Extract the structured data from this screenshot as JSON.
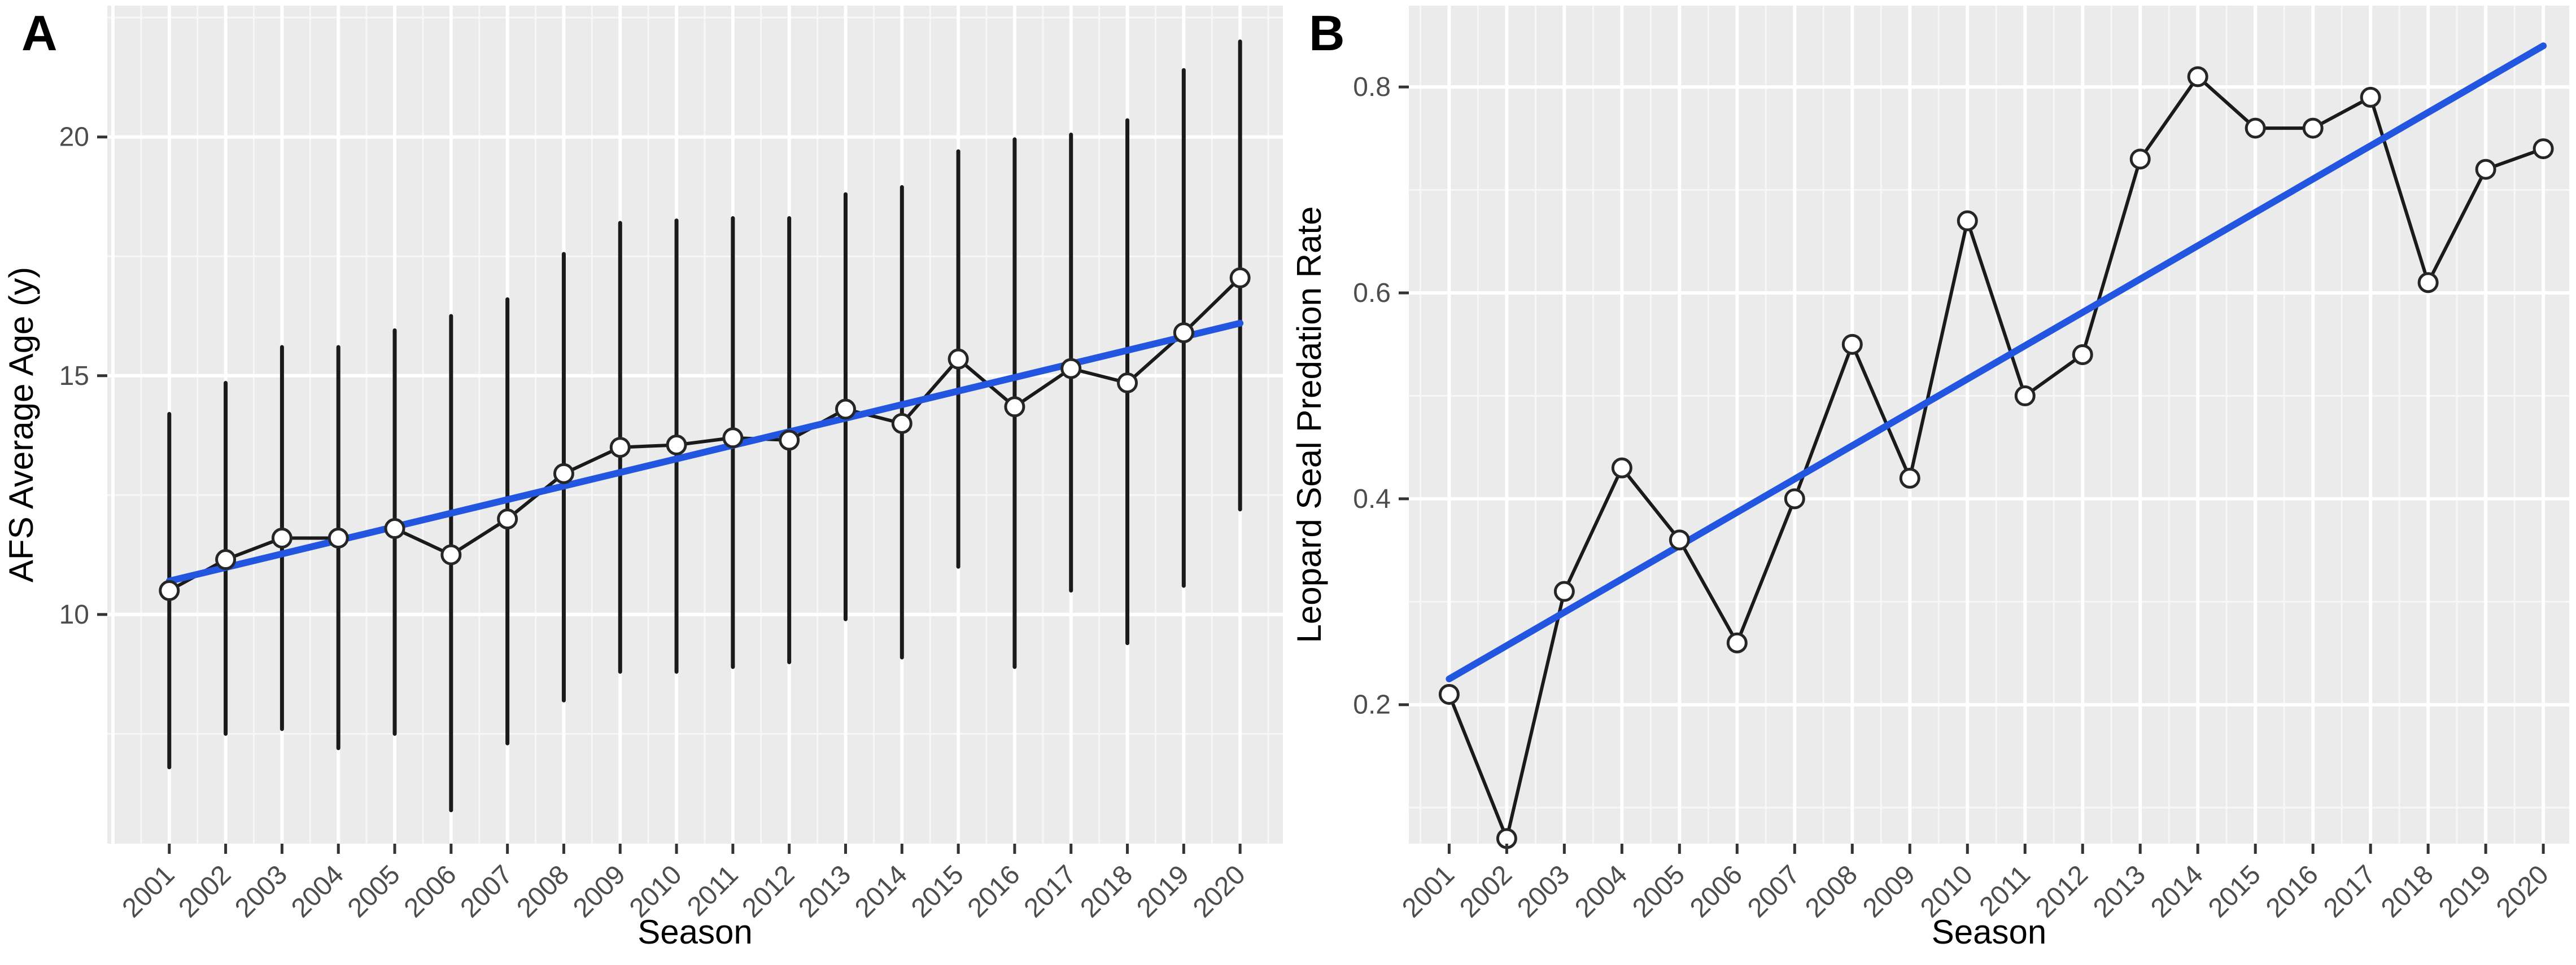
{
  "figure": {
    "description": "Two-panel scatter/line chart with linear trend lines",
    "x_axis_title": "Season"
  },
  "colors": {
    "panel_bg": "#EBEBEB",
    "grid_major": "#FFFFFF",
    "grid_minor": "#F7F7F7",
    "trend_line": "#2356E0",
    "data_line": "#1A1A1A",
    "point_fill": "#FFFFFF",
    "point_stroke": "#262626",
    "errorbar": "#1A1A1A",
    "tick_label": "#4D4D4D",
    "axis_title": "#000000",
    "tick_mark": "#333333"
  },
  "chart_data": [
    {
      "id": "A",
      "panel_label": "A",
      "type": "line",
      "xlabel": "Season",
      "ylabel": "AFS Average Age (y)",
      "x": [
        2001,
        2002,
        2003,
        2004,
        2005,
        2006,
        2007,
        2008,
        2009,
        2010,
        2011,
        2012,
        2013,
        2014,
        2015,
        2016,
        2017,
        2018,
        2019,
        2020
      ],
      "xtick_labels": [
        "2001",
        "2002",
        "2003",
        "2004",
        "2005",
        "2006",
        "2007",
        "2008",
        "2009",
        "2010",
        "2011",
        "2012",
        "2013",
        "2014",
        "2015",
        "2016",
        "2017",
        "2018",
        "2019",
        "2020"
      ],
      "series": [
        {
          "name": "AFS Average Age",
          "values": [
            10.5,
            11.15,
            11.6,
            11.6,
            11.8,
            11.25,
            12.0,
            12.95,
            13.5,
            13.55,
            13.7,
            13.65,
            14.3,
            14.0,
            15.35,
            14.35,
            15.15,
            14.85,
            15.9,
            17.05
          ],
          "err_low": [
            6.8,
            7.5,
            7.6,
            7.2,
            7.5,
            5.9,
            7.3,
            8.2,
            8.8,
            8.8,
            8.9,
            9.0,
            9.9,
            9.1,
            11.0,
            8.9,
            10.5,
            9.4,
            10.6,
            12.2
          ],
          "err_high": [
            14.2,
            14.85,
            15.6,
            15.6,
            15.95,
            16.25,
            16.6,
            17.55,
            18.2,
            18.25,
            18.3,
            18.3,
            18.8,
            18.95,
            19.7,
            19.95,
            20.05,
            20.35,
            21.4,
            22.0
          ]
        }
      ],
      "trend": {
        "x_start": 2001,
        "y_start": 10.7,
        "x_end": 2020,
        "y_end": 16.1
      },
      "yticks": [
        10,
        15,
        20
      ],
      "ytick_labels": [
        "10",
        "15",
        "20"
      ],
      "yticks_minor": [
        7.5,
        12.5,
        17.5,
        22.5
      ],
      "ylim": [
        5.2,
        22.75
      ],
      "xlim": [
        1999.9,
        2020.76
      ],
      "grid": "on",
      "legend": "none"
    },
    {
      "id": "B",
      "panel_label": "B",
      "type": "line",
      "xlabel": "Season",
      "ylabel": "Leopard Seal Predation Rate",
      "x": [
        2001,
        2002,
        2003,
        2004,
        2005,
        2006,
        2007,
        2008,
        2009,
        2010,
        2011,
        2012,
        2013,
        2014,
        2015,
        2016,
        2017,
        2018,
        2019,
        2020
      ],
      "xtick_labels": [
        "2001",
        "2002",
        "2003",
        "2004",
        "2005",
        "2006",
        "2007",
        "2008",
        "2009",
        "2010",
        "2011",
        "2012",
        "2013",
        "2014",
        "2015",
        "2016",
        "2017",
        "2018",
        "2019",
        "2020"
      ],
      "series": [
        {
          "name": "Leopard Seal Predation Rate",
          "values": [
            0.21,
            0.07,
            0.31,
            0.43,
            0.36,
            0.26,
            0.4,
            0.55,
            0.42,
            0.67,
            0.5,
            0.54,
            0.73,
            0.81,
            0.76,
            0.76,
            0.79,
            0.61,
            0.72,
            0.74
          ]
        }
      ],
      "trend": {
        "x_start": 2001,
        "y_start": 0.225,
        "x_end": 2020,
        "y_end": 0.84
      },
      "yticks": [
        0.2,
        0.4,
        0.6,
        0.8
      ],
      "ytick_labels": [
        "0.2",
        "0.4",
        "0.6",
        "0.8"
      ],
      "yticks_minor": [
        0.1,
        0.3,
        0.5,
        0.7
      ],
      "ylim": [
        0.065,
        0.879
      ],
      "xlim": [
        2000.3,
        2020.45
      ],
      "grid": "on",
      "legend": "none"
    }
  ]
}
